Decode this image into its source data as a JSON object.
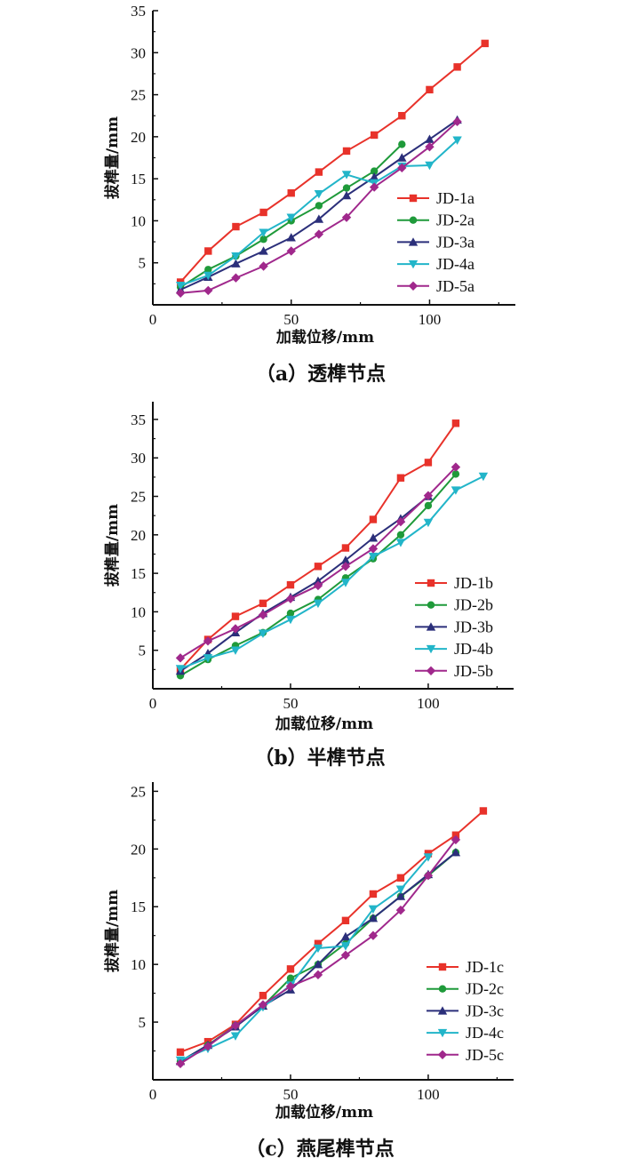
{
  "colors": {
    "s1": "#e8322a",
    "s2": "#1f9a3a",
    "s3": "#2b2f7a",
    "s4": "#22b5c9",
    "s5": "#a0288c"
  },
  "chart_data": [
    {
      "type": "line",
      "title": "（a）透榫节点",
      "xlabel": "加载位移/mm",
      "ylabel": "拔榫量/mm",
      "xlim": [
        0,
        131
      ],
      "ylim": [
        0,
        35
      ],
      "xticks": [
        0,
        50,
        100
      ],
      "yticks": [
        5,
        10,
        15,
        20,
        25,
        30,
        35
      ],
      "legend": "bottom-right",
      "series": [
        {
          "name": "JD-1a",
          "marker": "square",
          "x": [
            10,
            20,
            30,
            40,
            50,
            60,
            70,
            80,
            90,
            100,
            110,
            120
          ],
          "y": [
            2.7,
            6.4,
            9.3,
            11.0,
            13.3,
            15.8,
            18.3,
            20.2,
            22.5,
            25.6,
            28.3,
            31.1
          ]
        },
        {
          "name": "JD-2a",
          "marker": "circle",
          "x": [
            10,
            20,
            30,
            40,
            50,
            60,
            70,
            80,
            90
          ],
          "y": [
            2.1,
            4.2,
            5.8,
            7.8,
            10.0,
            11.8,
            13.9,
            15.9,
            19.1
          ]
        },
        {
          "name": "JD-3a",
          "marker": "triangle-up",
          "x": [
            10,
            20,
            30,
            40,
            50,
            60,
            70,
            80,
            90,
            100,
            110
          ],
          "y": [
            1.8,
            3.3,
            4.9,
            6.4,
            8.0,
            10.2,
            13.0,
            15.2,
            17.5,
            19.7,
            22.0
          ]
        },
        {
          "name": "JD-4a",
          "marker": "triangle-down",
          "x": [
            10,
            20,
            30,
            40,
            50,
            60,
            70,
            80,
            90,
            100,
            110
          ],
          "y": [
            2.3,
            3.5,
            5.8,
            8.6,
            10.4,
            13.2,
            15.5,
            14.5,
            16.5,
            16.6,
            19.6
          ]
        },
        {
          "name": "JD-5a",
          "marker": "diamond",
          "x": [
            10,
            20,
            30,
            40,
            50,
            60,
            70,
            80,
            90,
            100,
            110
          ],
          "y": [
            1.4,
            1.7,
            3.2,
            4.6,
            6.4,
            8.4,
            10.4,
            14.0,
            16.3,
            18.8,
            21.8
          ]
        }
      ]
    },
    {
      "type": "line",
      "title": "（b）半榫节点",
      "xlabel": "加载位移/mm",
      "ylabel": "拔榫量/mm",
      "xlim": [
        0,
        131
      ],
      "ylim": [
        0,
        37.3
      ],
      "xticks": [
        0,
        50,
        100
      ],
      "yticks": [
        5,
        10,
        15,
        20,
        25,
        30,
        35
      ],
      "legend": "bottom-right",
      "series": [
        {
          "name": "JD-1b",
          "marker": "square",
          "x": [
            10,
            20,
            30,
            40,
            50,
            60,
            70,
            80,
            90,
            100,
            110
          ],
          "y": [
            2.5,
            6.4,
            9.4,
            11.1,
            13.5,
            15.9,
            18.3,
            22.0,
            27.4,
            29.4,
            34.5
          ]
        },
        {
          "name": "JD-2b",
          "marker": "circle",
          "x": [
            10,
            20,
            30,
            40,
            50,
            60,
            70,
            80,
            90,
            100,
            110
          ],
          "y": [
            1.7,
            3.8,
            5.6,
            7.3,
            9.8,
            11.6,
            14.4,
            16.9,
            20.0,
            23.8,
            27.9
          ]
        },
        {
          "name": "JD-3b",
          "marker": "triangle-up",
          "x": [
            10,
            20,
            30,
            40,
            50,
            60,
            70,
            80,
            90,
            100
          ],
          "y": [
            2.3,
            4.6,
            7.3,
            9.8,
            11.9,
            14.0,
            16.7,
            19.6,
            22.1,
            25.0
          ]
        },
        {
          "name": "JD-4b",
          "marker": "triangle-down",
          "x": [
            10,
            20,
            30,
            40,
            50,
            60,
            70,
            80,
            90,
            100,
            110,
            120
          ],
          "y": [
            2.6,
            4.0,
            5.0,
            7.2,
            9.0,
            11.1,
            13.8,
            17.2,
            19.0,
            21.6,
            25.8,
            27.6
          ]
        },
        {
          "name": "JD-5b",
          "marker": "diamond",
          "x": [
            10,
            20,
            30,
            40,
            50,
            60,
            70,
            80,
            90,
            100,
            110
          ],
          "y": [
            4.0,
            6.2,
            7.8,
            9.6,
            11.7,
            13.4,
            15.9,
            18.2,
            21.7,
            25.1,
            28.8
          ]
        }
      ]
    },
    {
      "type": "line",
      "title": "（c）燕尾榫节点",
      "xlabel": "加载位移/mm",
      "ylabel": "拔榫量/mm",
      "xlim": [
        0,
        131
      ],
      "ylim": [
        0,
        25.8
      ],
      "xticks": [
        0,
        50,
        100
      ],
      "yticks": [
        5,
        10,
        15,
        20,
        25
      ],
      "legend": "bottom-right",
      "series": [
        {
          "name": "JD-1c",
          "marker": "square",
          "x": [
            10,
            20,
            30,
            40,
            50,
            60,
            70,
            80,
            90,
            100,
            110,
            120
          ],
          "y": [
            2.4,
            3.3,
            4.8,
            7.3,
            9.6,
            11.8,
            13.8,
            16.1,
            17.5,
            19.6,
            21.2,
            23.3
          ]
        },
        {
          "name": "JD-2c",
          "marker": "circle",
          "x": [
            10,
            20,
            30,
            40,
            50,
            60,
            70,
            80,
            90,
            100,
            110
          ],
          "y": [
            1.6,
            3.0,
            4.7,
            6.4,
            8.8,
            10.0,
            11.8,
            14.0,
            15.9,
            17.7,
            19.7
          ]
        },
        {
          "name": "JD-3c",
          "marker": "triangle-up",
          "x": [
            10,
            20,
            30,
            40,
            50,
            60,
            70,
            80,
            90,
            100,
            110
          ],
          "y": [
            1.6,
            3.0,
            4.6,
            6.4,
            7.8,
            10.0,
            12.4,
            14.0,
            15.9,
            17.8,
            19.7
          ]
        },
        {
          "name": "JD-4c",
          "marker": "triangle-down",
          "x": [
            10,
            20,
            30,
            40,
            50,
            60,
            70,
            80,
            90,
            100
          ],
          "y": [
            1.7,
            2.7,
            3.8,
            6.3,
            8.2,
            11.4,
            11.6,
            14.8,
            16.5,
            19.3
          ]
        },
        {
          "name": "JD-5c",
          "marker": "diamond",
          "x": [
            10,
            20,
            30,
            40,
            50,
            60,
            70,
            80,
            90,
            100,
            110
          ],
          "y": [
            1.4,
            2.9,
            4.7,
            6.5,
            8.1,
            9.1,
            10.8,
            12.5,
            14.7,
            17.7,
            20.8
          ]
        }
      ]
    }
  ]
}
